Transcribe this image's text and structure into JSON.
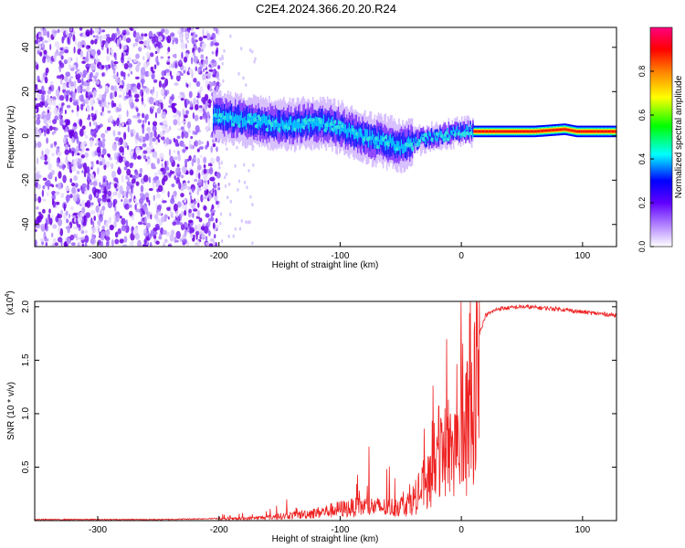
{
  "title": "C2E4.2024.366.20.20.R24",
  "chart_data": [
    {
      "type": "heatmap",
      "xlabel": "Height of straight line (km)",
      "ylabel": "Frequency (Hz)",
      "xlim": [
        -352,
        128
      ],
      "ylim": [
        -50,
        49
      ],
      "xticks": [
        -300,
        -200,
        -100,
        0,
        100
      ],
      "yticks": [
        -40,
        -20,
        0,
        20,
        40
      ],
      "xtick_labels": [
        "-300",
        "-200",
        "-100",
        "0",
        "100"
      ],
      "ytick_labels": [
        "-40",
        "-20",
        "0",
        "20",
        "40"
      ],
      "colorbar": {
        "label": "Normalized spectral amplitude",
        "range": [
          0,
          1
        ],
        "ticks": [
          0.0,
          0.2,
          0.4,
          0.6,
          0.8
        ],
        "tick_labels": [
          "0.0",
          "0.2",
          "0.4",
          "0.6",
          "0.8"
        ],
        "colors": [
          "#ffffff",
          "#7a00ff",
          "#0000ff",
          "#00ffff",
          "#00ff00",
          "#ffff00",
          "#ff8000",
          "#ff0000",
          "#ff0080"
        ]
      },
      "noise_region_x": [
        -352,
        -200
      ],
      "signal_ridge": {
        "x": [
          -205,
          -180,
          -150,
          -120,
          -100,
          -85,
          -70,
          -60,
          -50,
          -40,
          -30,
          -20,
          -10,
          0,
          10,
          30,
          60,
          85,
          95,
          128
        ],
        "y": [
          9,
          7,
          5,
          6,
          4,
          0,
          -2,
          -3,
          -5,
          -3,
          -1,
          0,
          1,
          2,
          2,
          2,
          2,
          3,
          2,
          2
        ]
      }
    },
    {
      "type": "line",
      "xlabel": "Height of straight line (km)",
      "ylabel": "SNR (10 * v/v)",
      "y_multiplier_label": "(x10",
      "y_multiplier_exp": "4",
      "y_multiplier_close": ")",
      "xlim": [
        -352,
        128
      ],
      "ylim": [
        0,
        2.05
      ],
      "xticks": [
        -300,
        -200,
        -100,
        0,
        100
      ],
      "yticks": [
        0.5,
        1.0,
        1.5,
        2.0
      ],
      "xtick_labels": [
        "-300",
        "-200",
        "-100",
        "0",
        "100"
      ],
      "ytick_labels": [
        "0.5",
        "1.0",
        "1.5",
        "2.0"
      ],
      "line_color": "#ee2222",
      "envelope": {
        "x": [
          -352,
          -250,
          -200,
          -180,
          -160,
          -140,
          -120,
          -100,
          -80,
          -60,
          -45,
          -35,
          -25,
          -20,
          -15,
          -10,
          -5,
          0,
          5,
          10,
          15,
          20,
          30,
          50,
          80,
          100,
          128
        ],
        "y": [
          0.01,
          0.01,
          0.02,
          0.03,
          0.05,
          0.08,
          0.12,
          0.18,
          0.22,
          0.2,
          0.25,
          0.4,
          0.8,
          1.0,
          1.1,
          1.2,
          1.3,
          1.35,
          1.45,
          1.55,
          1.75,
          1.92,
          1.98,
          2.0,
          1.98,
          1.95,
          1.92
        ]
      }
    }
  ]
}
